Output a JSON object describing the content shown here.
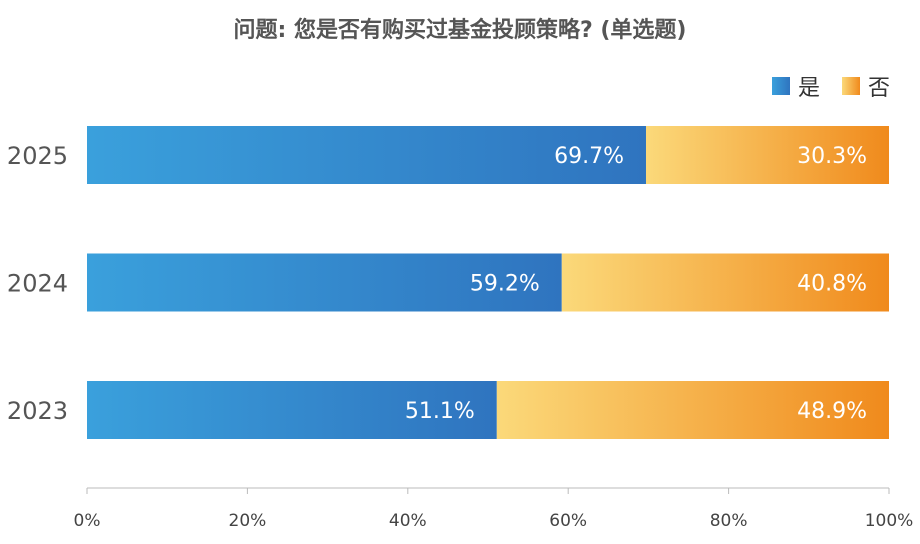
{
  "title": "问题: 您是否有购买过基金投顾策略? (单选题)",
  "legend": [
    {
      "name": "是",
      "color": "#2f74bf",
      "color_start": "#3aa0dc"
    },
    {
      "name": "否",
      "color": "#f08a1c",
      "color_start": "#fbd97a"
    }
  ],
  "chart_data": {
    "type": "bar",
    "orientation": "horizontal",
    "stacked": true,
    "categories": [
      "2025",
      "2024",
      "2023"
    ],
    "series": [
      {
        "name": "是",
        "values": [
          69.7,
          59.2,
          51.1
        ],
        "labels": [
          "69.7%",
          "59.2%",
          "51.1%"
        ]
      },
      {
        "name": "否",
        "values": [
          30.3,
          40.8,
          48.9
        ],
        "labels": [
          "30.3%",
          "40.8%",
          "48.9%"
        ]
      }
    ],
    "xlim": [
      0,
      100
    ],
    "xticks": [
      "0%",
      "20%",
      "40%",
      "60%",
      "80%",
      "100%"
    ],
    "grid": false,
    "legend_position": "top-right"
  }
}
